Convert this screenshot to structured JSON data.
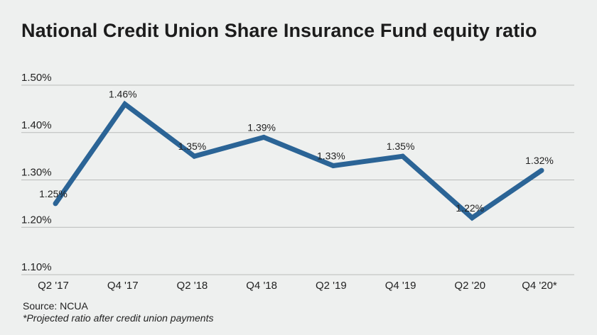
{
  "chart_data": {
    "type": "line",
    "title": "National Credit Union Share Insurance Fund equity ratio",
    "categories": [
      "Q2 '17",
      "Q4 '17",
      "Q2 '18",
      "Q4 '18",
      "Q2 '19",
      "Q4 '19",
      "Q2 '20",
      "Q4 '20*"
    ],
    "values": [
      1.25,
      1.46,
      1.35,
      1.39,
      1.33,
      1.35,
      1.22,
      1.32
    ],
    "data_labels": [
      "1.25%",
      "1.46%",
      "1.35%",
      "1.39%",
      "1.33%",
      "1.35%",
      "1.22%",
      "1.32%"
    ],
    "yticks": [
      1.1,
      1.2,
      1.3,
      1.4,
      1.5
    ],
    "ytick_labels": [
      "1.10%",
      "1.20%",
      "1.30%",
      "1.40%",
      "1.50%"
    ],
    "ylim": [
      1.1,
      1.5
    ],
    "xlabel": "",
    "ylabel": "",
    "grid": "horizontal",
    "line_color": "#2b6496",
    "grid_color": "#b9bbba"
  },
  "footer": {
    "source": "Source: NCUA",
    "note": "*Projected ratio after credit union payments"
  }
}
